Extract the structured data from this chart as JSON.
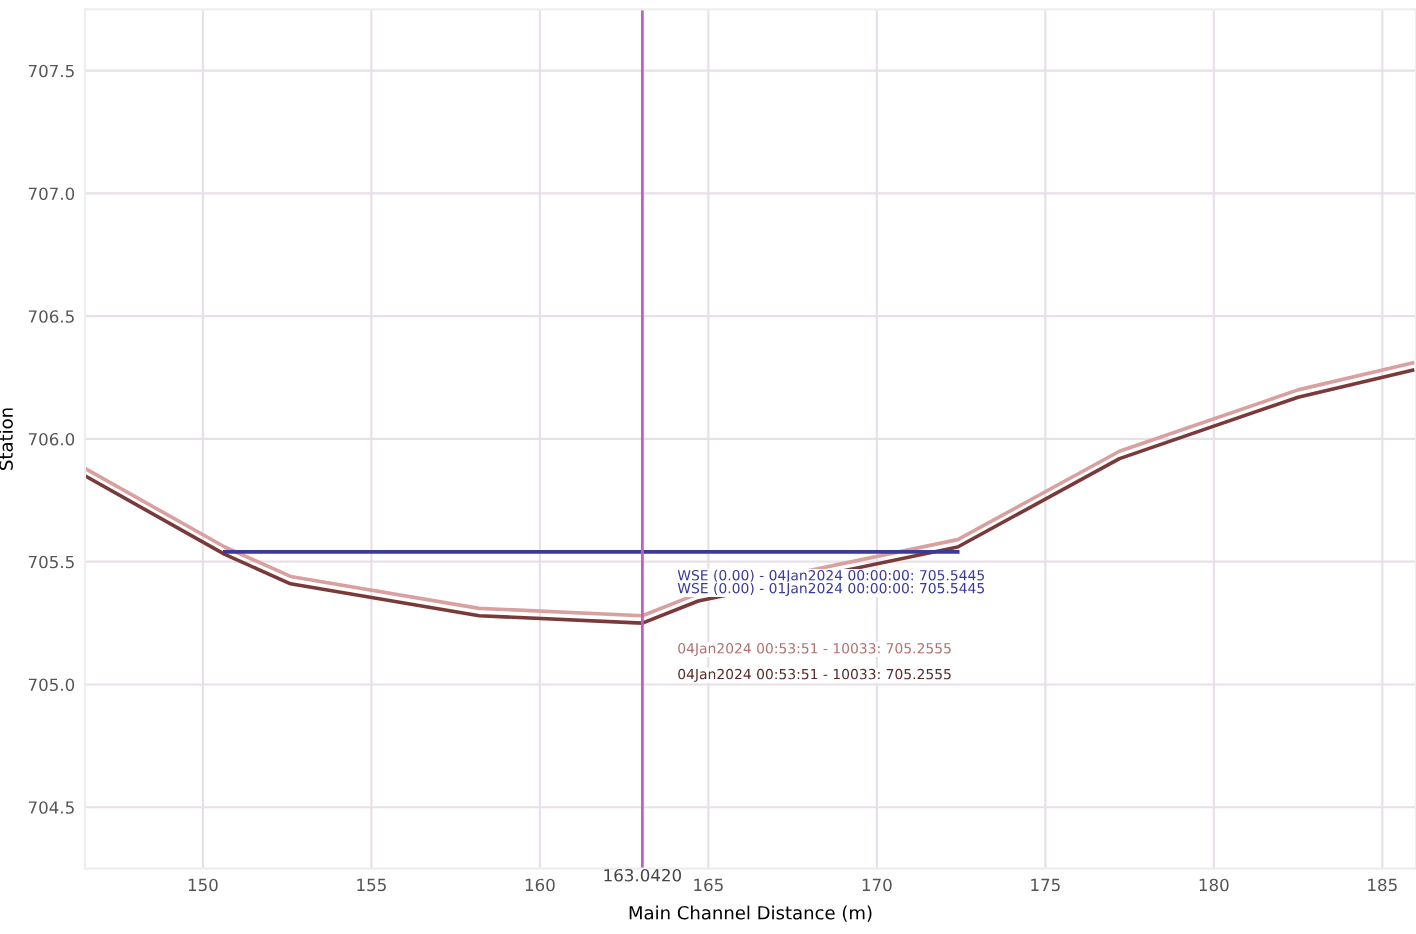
{
  "chart_data": {
    "type": "line",
    "xlabel": "Main Channel Distance (m)",
    "ylabel": "Station",
    "xlim": [
      146.5,
      186
    ],
    "ylim": [
      704.25,
      707.75
    ],
    "xticks": [
      150,
      155,
      160,
      165,
      170,
      175,
      180,
      185
    ],
    "yticks": [
      {
        "value": 704.5,
        "label": "704.5"
      },
      {
        "value": 705.0,
        "label": "705.0"
      },
      {
        "value": 705.5,
        "label": "705.5"
      },
      {
        "value": 706.0,
        "label": "706.0"
      },
      {
        "value": 706.5,
        "label": "706.5"
      },
      {
        "value": 707.0,
        "label": "707.0"
      },
      {
        "value": 707.5,
        "label": "707.5"
      }
    ],
    "grid": true,
    "marker": "none",
    "line_style": "solid",
    "series": [
      {
        "color": "#d9a0a0",
        "x": [
          146.5,
          150.65,
          152.6,
          158.2,
          163.04,
          164.7,
          172.4,
          177.2,
          182.5,
          185.9
        ],
        "values": [
          705.88,
          705.56,
          705.44,
          705.31,
          705.28,
          705.37,
          705.59,
          705.95,
          706.2,
          706.31
        ]
      },
      {
        "color": "#7a3a3a",
        "x": [
          146.5,
          150.65,
          152.6,
          158.2,
          163.04,
          164.7,
          172.4,
          177.2,
          182.5,
          185.9
        ],
        "values": [
          705.85,
          705.53,
          705.41,
          705.28,
          705.25,
          705.34,
          705.56,
          705.92,
          706.17,
          706.28
        ]
      },
      {
        "color": "#3a3a9a",
        "x": [
          150.65,
          172.4
        ],
        "values": [
          705.54,
          705.54
        ]
      }
    ],
    "ref_lines": [
      {
        "axis": "x",
        "value": 163.042,
        "label": "163.0420",
        "color": "#c060c0",
        "line_style": "solid"
      }
    ],
    "annotations": [
      "WSE (0.00) - 04Jan2024 00:00:00: 705.5445",
      "WSE (0.00) - 01Jan2024 00:00:00: 705.5445",
      "04Jan2024 00:53:51 - 10033: 705.2555",
      "04Jan2024 00:53:51 - 10033: 705.2555"
    ]
  }
}
